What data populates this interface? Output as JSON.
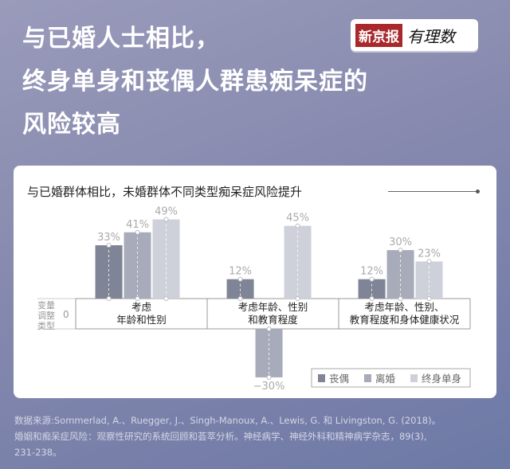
{
  "title_lines": [
    "与已婚人士相比，",
    "终身单身和丧偶人群患痴呆症的",
    "风险较高"
  ],
  "logo": {
    "brand": "新京报",
    "column": "有理数"
  },
  "chart_data": {
    "type": "bar",
    "title": "与已婚群体相比，未婚群体不同类型痴呆症风险提升",
    "axis_label": "变量调整类型",
    "zero_label": "0",
    "categories": [
      "考虑\n年龄和性别",
      "考虑年龄、性别\n和教育程度",
      "考虑年龄、性别、\n教育程度和身体健康状况"
    ],
    "series": [
      {
        "name": "丧偶",
        "color": "#7f8496",
        "values": [
          33,
          12,
          12
        ]
      },
      {
        "name": "离婚",
        "color": "#a7abba",
        "values": [
          41,
          -30,
          30
        ]
      },
      {
        "name": "终身单身",
        "color": "#cfd1da",
        "values": [
          49,
          45,
          23
        ]
      }
    ],
    "unit": "%"
  },
  "source": [
    "数据来源:Sommerlad, A.、Ruegger, J.、Singh-Manoux, A.、Lewis, G. 和 Livingston, G. (2018)。",
    "婚姻和痴呆症风险：观察性研究的系统回顾和荟萃分析。神经病学、神经外科和精神病学杂志，89(3),",
    "231-238。"
  ]
}
